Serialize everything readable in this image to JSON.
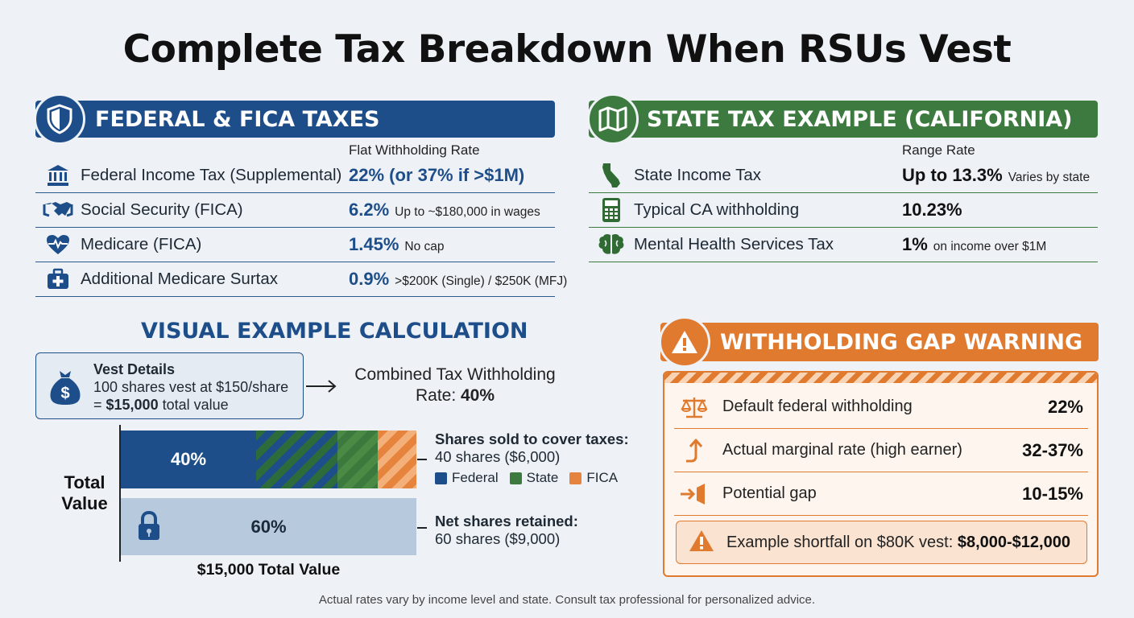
{
  "title": "Complete Tax Breakdown When RSUs Vest",
  "federal": {
    "heading": "FEDERAL & FICA TAXES",
    "column_header": "Flat Withholding Rate",
    "rows": [
      {
        "icon": "bank-icon",
        "name": "Federal Income Tax (Supplemental)",
        "rate": "22% (or 37% if >$1M)",
        "note": ""
      },
      {
        "icon": "handshake-icon",
        "name": "Social Security (FICA)",
        "rate": "6.2%",
        "note": "Up to ~$180,000 in wages"
      },
      {
        "icon": "heartbeat-icon",
        "name": "Medicare (FICA)",
        "rate": "1.45%",
        "note": "No cap"
      },
      {
        "icon": "medical-kit-icon",
        "name": "Additional Medicare Surtax",
        "rate": "0.9%",
        "note": ">$200K (Single) / $250K (MFJ)"
      }
    ]
  },
  "state": {
    "heading": "STATE TAX EXAMPLE (CALIFORNIA)",
    "column_header": "Range Rate",
    "rows": [
      {
        "icon": "california-icon",
        "name": "State Income Tax",
        "rate": "Up to 13.3%",
        "note": "Varies by state"
      },
      {
        "icon": "calculator-icon",
        "name": "Typical CA withholding",
        "rate": "10.23%",
        "note": ""
      },
      {
        "icon": "brain-icon",
        "name": "Mental Health Services Tax",
        "rate": "1%",
        "note": "on income over $1M"
      }
    ]
  },
  "visual": {
    "heading": "VISUAL EXAMPLE CALCULATION",
    "vest_title": "Vest Details",
    "vest_line1": "100 shares vest at $150/share",
    "vest_line2_prefix": "= ",
    "vest_line2_bold": "$15,000",
    "vest_line2_suffix": " total value",
    "combined_line1": "Combined Tax Withholding",
    "combined_line2_prefix": "Rate: ",
    "combined_line2_bold": "40%",
    "total_label_1": "Total",
    "total_label_2": "Value",
    "bar_top_pct": "40%",
    "bar_bottom_pct": "60%",
    "total_value": "$15,000 Total Value",
    "sold_title": "Shares sold to cover taxes:",
    "sold_sub": "40 shares ($6,000)",
    "legend": [
      {
        "label": "Federal",
        "color": "#1d4e89"
      },
      {
        "label": "State",
        "color": "#3d7a3f"
      },
      {
        "label": "FICA",
        "color": "#e6843d"
      }
    ],
    "net_title": "Net shares retained:",
    "net_sub": "60 shares ($9,000)"
  },
  "warning": {
    "heading": "WITHHOLDING GAP WARNING",
    "rows": [
      {
        "icon": "scale-icon",
        "label": "Default federal withholding",
        "value": "22%"
      },
      {
        "icon": "arrow-up-icon",
        "label": "Actual marginal rate (high earner)",
        "value": "32-37%"
      },
      {
        "icon": "gap-icon",
        "label": "Potential gap",
        "value": "10-15%"
      }
    ],
    "shortfall_prefix": "Example shortfall on $80K vest: ",
    "shortfall_bold": "$8,000-$12,000"
  },
  "footnote": "Actual rates vary by income level and state. Consult tax professional for personalized advice.",
  "colors": {
    "federal_blue": "#1d4e89",
    "state_green": "#3d7a3f",
    "warning_orange": "#e07a2f"
  }
}
